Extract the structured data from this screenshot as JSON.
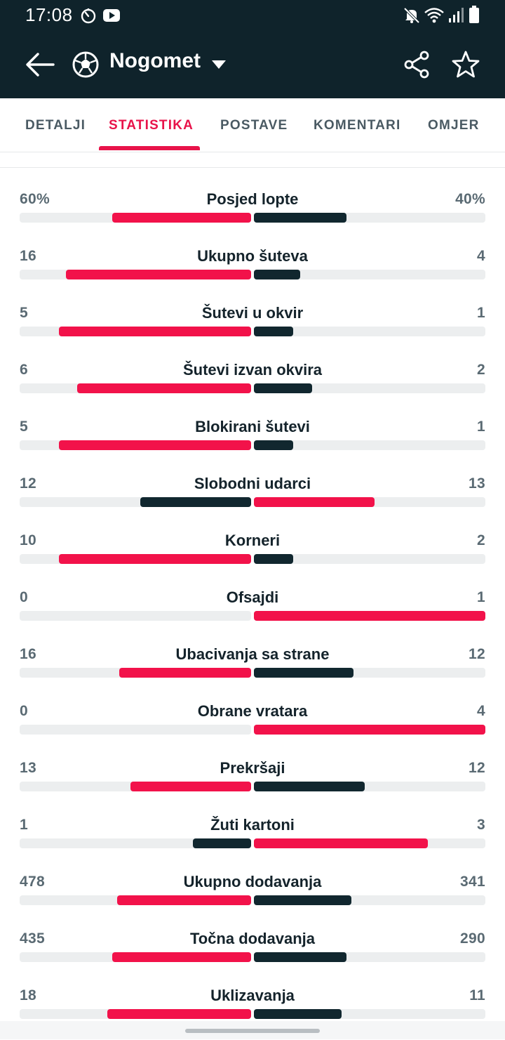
{
  "status_bar": {
    "time": "17:08",
    "icons": [
      "timer-icon",
      "youtube-icon",
      "mute-icon",
      "wifi-icon",
      "signal-icon",
      "battery-icon"
    ]
  },
  "app_bar": {
    "title": "Nogomet",
    "icons": [
      "back-arrow-icon",
      "football-icon",
      "chevron-down-icon",
      "share-icon",
      "star-icon"
    ]
  },
  "tabs": [
    {
      "label": "DETALJI",
      "active": false
    },
    {
      "label": "STATISTIKA",
      "active": true
    },
    {
      "label": "POSTAVE",
      "active": false
    },
    {
      "label": "KOMENTARI",
      "active": false
    },
    {
      "label": "OMJER",
      "active": false
    }
  ],
  "colors": {
    "header_bg": "#0f232b",
    "accent": "#e8134a",
    "bar_leading": "#f2124a",
    "bar_trailing": "#11272f",
    "track": "#eceeef"
  },
  "stats": [
    {
      "label": "Posjed lopte",
      "home": "60%",
      "away": "40%",
      "home_fill": 0.6,
      "away_fill": 0.4
    },
    {
      "label": "Ukupno šuteva",
      "home": "16",
      "away": "4",
      "home_fill": 0.8,
      "away_fill": 0.2
    },
    {
      "label": "Šutevi u okvir",
      "home": "5",
      "away": "1",
      "home_fill": 0.83,
      "away_fill": 0.17
    },
    {
      "label": "Šutevi izvan okvira",
      "home": "6",
      "away": "2",
      "home_fill": 0.75,
      "away_fill": 0.25
    },
    {
      "label": "Blokirani šutevi",
      "home": "5",
      "away": "1",
      "home_fill": 0.83,
      "away_fill": 0.17
    },
    {
      "label": "Slobodni udarci",
      "home": "12",
      "away": "13",
      "home_fill": 0.48,
      "away_fill": 0.52
    },
    {
      "label": "Korneri",
      "home": "10",
      "away": "2",
      "home_fill": 0.83,
      "away_fill": 0.17
    },
    {
      "label": "Ofsajdi",
      "home": "0",
      "away": "1",
      "home_fill": 0.0,
      "away_fill": 1.0
    },
    {
      "label": "Ubacivanja sa strane",
      "home": "16",
      "away": "12",
      "home_fill": 0.57,
      "away_fill": 0.43
    },
    {
      "label": "Obrane vratara",
      "home": "0",
      "away": "4",
      "home_fill": 0.0,
      "away_fill": 1.0
    },
    {
      "label": "Prekršaji",
      "home": "13",
      "away": "12",
      "home_fill": 0.52,
      "away_fill": 0.48
    },
    {
      "label": "Žuti kartoni",
      "home": "1",
      "away": "3",
      "home_fill": 0.25,
      "away_fill": 0.75
    },
    {
      "label": "Ukupno dodavanja",
      "home": "478",
      "away": "341",
      "home_fill": 0.58,
      "away_fill": 0.42
    },
    {
      "label": "Točna dodavanja",
      "home": "435",
      "away": "290",
      "home_fill": 0.6,
      "away_fill": 0.4
    },
    {
      "label": "Uklizavanja",
      "home": "18",
      "away": "11",
      "home_fill": 0.62,
      "away_fill": 0.38
    }
  ]
}
